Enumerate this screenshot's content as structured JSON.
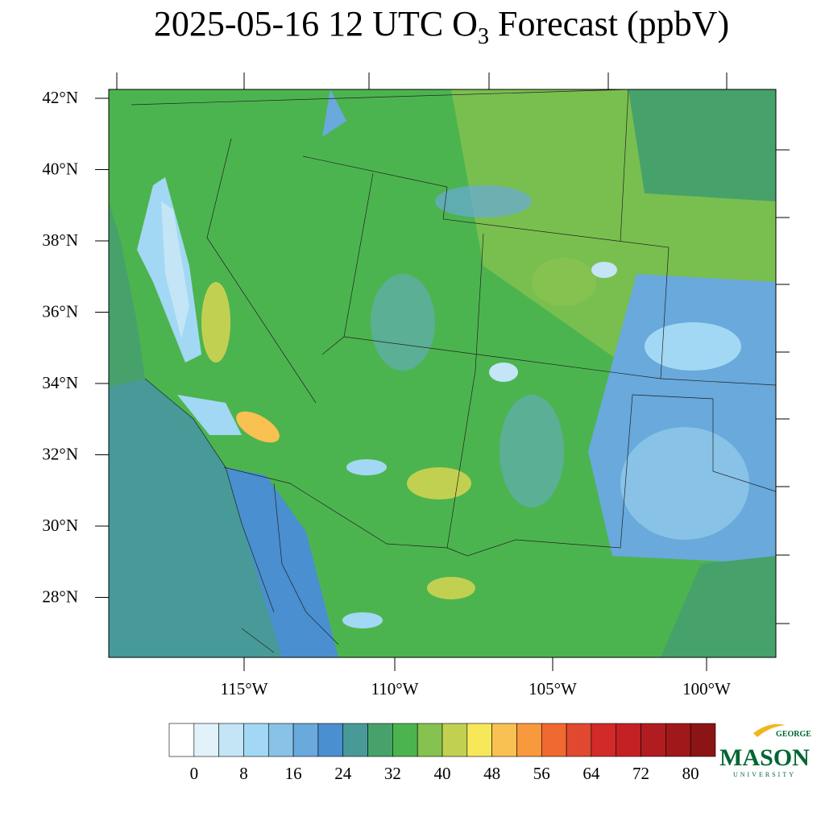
{
  "header": {
    "title_start": "2025-05-16 12 UTC O",
    "title_subscript": "3",
    "title_end": " Forecast (ppbV)"
  },
  "map": {
    "lat_labels": [
      "42°N",
      "40°N",
      "38°N",
      "36°N",
      "34°N",
      "32°N",
      "30°N",
      "28°N"
    ],
    "lon_labels": [
      "115°W",
      "110°W",
      "105°W",
      "100°W"
    ]
  },
  "colorbar": {
    "levels": [
      0,
      8,
      16,
      24,
      32,
      40,
      48,
      56,
      64,
      72,
      80
    ],
    "colors": [
      "#ffffff",
      "#e2f2fb",
      "#c3e5f6",
      "#a2d8f3",
      "#88c2e6",
      "#69a9dc",
      "#4a8fcf",
      "#479a98",
      "#47a16b",
      "#4cb44f",
      "#85c24f",
      "#c2d052",
      "#f7e85a",
      "#f8c151",
      "#f8993d",
      "#f06931",
      "#e0492f",
      "#d12a29",
      "#c42125",
      "#b11c21",
      "#a01819",
      "#8b1515"
    ]
  },
  "logo": {
    "top": "GEORGE",
    "main": "MASON",
    "bottom": "UNIVERSITY"
  }
}
